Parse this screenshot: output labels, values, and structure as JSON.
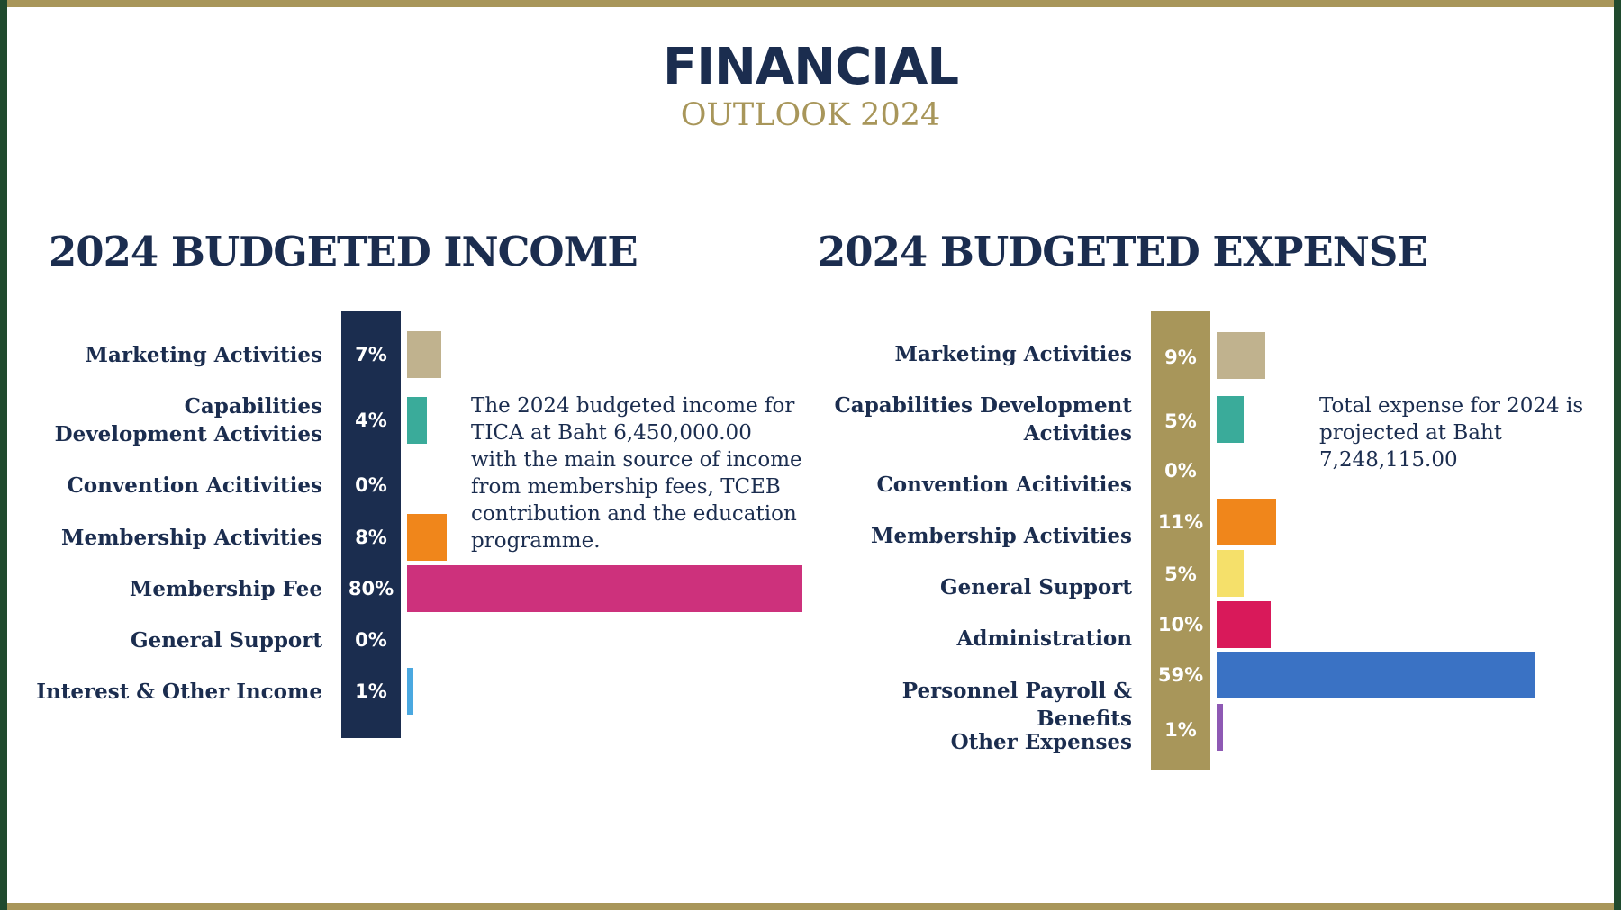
{
  "header": {
    "title": "FINANCIAL",
    "subtitle": "OUTLOOK 2024"
  },
  "colors": {
    "gold": "#a8965a",
    "navy": "#1b2d4f",
    "green_edge": "#1f4a2e"
  },
  "income": {
    "note": "The 2024 budgeted income for TICA at Baht 6,450,000.00 with the main source of income from membership fees, TCEB contribution and the education programme."
  },
  "expense": {
    "note": "Total expense for 2024 is projected at Baht 7,248,115.00"
  },
  "chart_data": [
    {
      "type": "bar",
      "orientation": "horizontal",
      "title": "2024 BUDGETED INCOME",
      "xlabel": "",
      "ylabel": "",
      "unit": "%",
      "xlim": [
        0,
        80
      ],
      "categories": [
        "Marketing Activities",
        "Capabilities Development Activities",
        "Convention Acitivities",
        "Membership Activities",
        "Membership Fee",
        "General Support",
        "Interest & Other Income"
      ],
      "values": [
        7,
        4,
        0,
        8,
        80,
        0,
        1
      ],
      "value_labels": [
        "7%",
        "4%",
        "0%",
        "8%",
        "80%",
        "0%",
        "1%"
      ],
      "colors": [
        "#c0b28e",
        "#3aab9a",
        "#ffffff",
        "#f0861b",
        "#cd317c",
        "#ffffff",
        "#4aa8e0"
      ],
      "legend": "none",
      "grid": false
    },
    {
      "type": "bar",
      "orientation": "horizontal",
      "title": "2024 BUDGETED EXPENSE",
      "xlabel": "",
      "ylabel": "",
      "unit": "%",
      "xlim": [
        0,
        59
      ],
      "categories": [
        "Marketing Activities",
        "Capabilities Development Activities",
        "Convention Acitivities",
        "Membership Activities",
        "General Support",
        "Administration",
        "Personnel Payroll & Benefits",
        "Other Expenses"
      ],
      "values": [
        9,
        5,
        0,
        11,
        5,
        10,
        59,
        1
      ],
      "value_labels": [
        "9%",
        "5%",
        "0%",
        "11%",
        "5%",
        "10%",
        "59%",
        "1%"
      ],
      "colors": [
        "#c0b28e",
        "#3aab9a",
        "#ffffff",
        "#f0861b",
        "#f5e06a",
        "#d9195a",
        "#3a72c4",
        "#8e59b4"
      ],
      "legend": "none",
      "grid": false
    }
  ]
}
